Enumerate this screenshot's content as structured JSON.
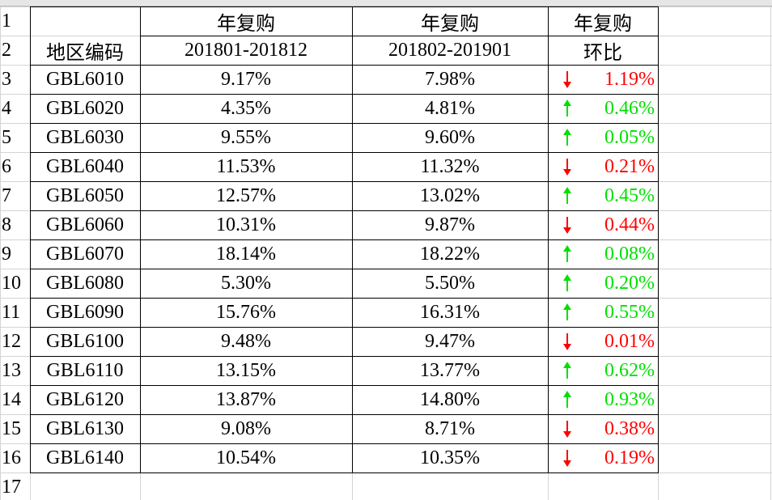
{
  "row_numbers": [
    1,
    2,
    3,
    4,
    5,
    6,
    7,
    8,
    9,
    10,
    11,
    12,
    13,
    14,
    15,
    16,
    17
  ],
  "table": {
    "header_top": {
      "b": "年复购",
      "c": "年复购",
      "d": "年复购"
    },
    "header": {
      "a": "地区编码",
      "b": "201801-201812",
      "c": "201802-201901",
      "d": "环比"
    },
    "rows": [
      {
        "code": "GBL6010",
        "b": "9.17%",
        "c": "7.98%",
        "d": "1.19%",
        "trend": "down"
      },
      {
        "code": "GBL6020",
        "b": "4.35%",
        "c": "4.81%",
        "d": "0.46%",
        "trend": "up"
      },
      {
        "code": "GBL6030",
        "b": "9.55%",
        "c": "9.60%",
        "d": "0.05%",
        "trend": "up"
      },
      {
        "code": "GBL6040",
        "b": "11.53%",
        "c": "11.32%",
        "d": "0.21%",
        "trend": "down"
      },
      {
        "code": "GBL6050",
        "b": "12.57%",
        "c": "13.02%",
        "d": "0.45%",
        "trend": "up"
      },
      {
        "code": "GBL6060",
        "b": "10.31%",
        "c": "9.87%",
        "d": "0.44%",
        "trend": "down"
      },
      {
        "code": "GBL6070",
        "b": "18.14%",
        "c": "18.22%",
        "d": "0.08%",
        "trend": "up"
      },
      {
        "code": "GBL6080",
        "b": "5.30%",
        "c": "5.50%",
        "d": "0.20%",
        "trend": "up"
      },
      {
        "code": "GBL6090",
        "b": "15.76%",
        "c": "16.31%",
        "d": "0.55%",
        "trend": "up"
      },
      {
        "code": "GBL6100",
        "b": "9.48%",
        "c": "9.47%",
        "d": "0.01%",
        "trend": "down"
      },
      {
        "code": "GBL6110",
        "b": "13.15%",
        "c": "13.77%",
        "d": "0.62%",
        "trend": "up"
      },
      {
        "code": "GBL6120",
        "b": "13.87%",
        "c": "14.80%",
        "d": "0.93%",
        "trend": "up"
      },
      {
        "code": "GBL6130",
        "b": "9.08%",
        "c": "8.71%",
        "d": "0.38%",
        "trend": "down"
      },
      {
        "code": "GBL6140",
        "b": "10.54%",
        "c": "10.35%",
        "d": "0.19%",
        "trend": "down"
      }
    ],
    "trend_colors": {
      "up": "#00e000",
      "down": "#ff0000"
    }
  }
}
